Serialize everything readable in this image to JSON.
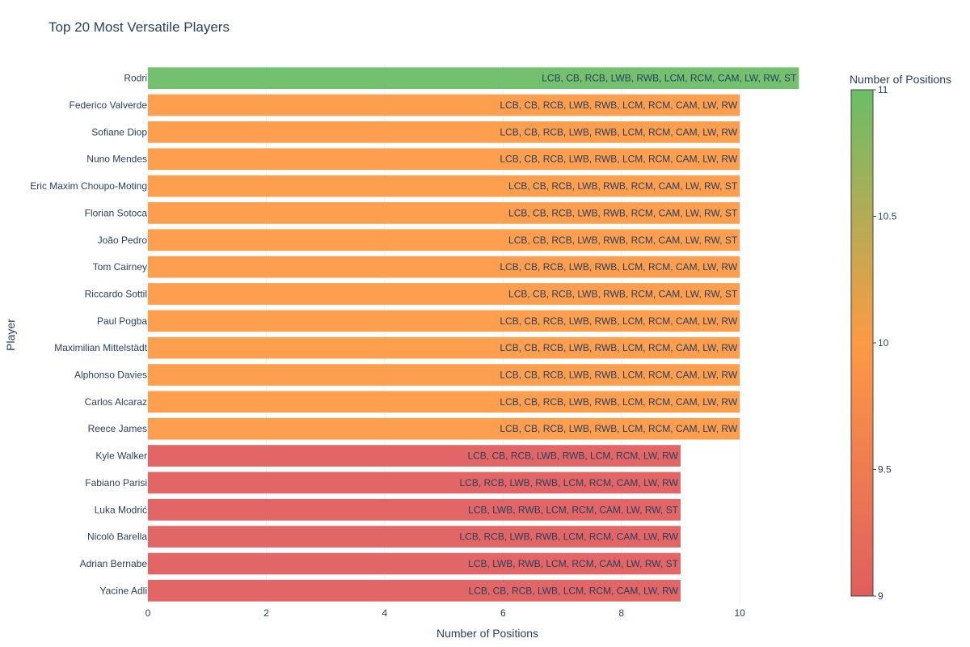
{
  "chart_data": {
    "type": "bar",
    "orientation": "horizontal",
    "title": "Top 20 Most Versatile Players",
    "xlabel": "Number of Positions",
    "ylabel": "Player",
    "xlim": [
      0,
      11.5
    ],
    "x_ticks": [
      0,
      2,
      4,
      6,
      8,
      10
    ],
    "grid": true,
    "categories": [
      "Rodri",
      "Federico Valverde",
      "Sofiane Diop",
      "Nuno Mendes",
      "Eric Maxim Choupo-Moting",
      "Florian Sotoca",
      "João Pedro",
      "Tom Cairney",
      "Riccardo Sottil",
      "Paul Pogba",
      "Maximilian Mittelstädt",
      "Alphonso Davies",
      "Carlos Alcaraz",
      "Reece James",
      "Kyle Walker",
      "Fabiano Parisi",
      "Luka Modrić",
      "Nicolò Barella",
      "Adrian Bernabe",
      "Yacine Adli"
    ],
    "values": [
      11,
      10,
      10,
      10,
      10,
      10,
      10,
      10,
      10,
      10,
      10,
      10,
      10,
      10,
      9,
      9,
      9,
      9,
      9,
      9
    ],
    "bar_text": [
      "LCB, CB, RCB, LWB, RWB, LCM, RCM, CAM, LW, RW, ST",
      "LCB, CB, RCB, LWB, RWB, LCM, RCM, CAM, LW, RW",
      "LCB, CB, RCB, LWB, RWB, LCM, RCM, CAM, LW, RW",
      "LCB, CB, RCB, LWB, RWB, LCM, RCM, CAM, LW, RW",
      "LCB, CB, RCB, LWB, RWB, RCM, CAM, LW, RW, ST",
      "LCB, CB, RCB, LWB, RWB, RCM, CAM, LW, RW, ST",
      "LCB, CB, RCB, LWB, RWB, RCM, CAM, LW, RW, ST",
      "LCB, CB, RCB, LWB, RWB, LCM, RCM, CAM, LW, RW",
      "LCB, CB, RCB, LWB, RWB, RCM, CAM, LW, RW, ST",
      "LCB, CB, RCB, LWB, RWB, LCM, RCM, CAM, LW, RW",
      "LCB, CB, RCB, LWB, RWB, LCM, RCM, CAM, LW, RW",
      "LCB, CB, RCB, LWB, RWB, LCM, RCM, CAM, LW, RW",
      "LCB, CB, RCB, LWB, RWB, LCM, RCM, CAM, LW, RW",
      "LCB, CB, RCB, LWB, RWB, LCM, RCM, CAM, LW, RW",
      "LCB, CB, RCB, LWB, RWB, LCM, RCM, LW, RW",
      "LCB, RCB, LWB, RWB, LCM, RCM, CAM, LW, RW",
      "LCB, LWB, RWB, LCM, RCM, CAM, LW, RW, ST",
      "LCB, RCB, LWB, RWB, LCM, RCM, CAM, LW, RW",
      "LCB, LWB, RWB, LCM, RCM, CAM, LW, RW, ST",
      "LCB, CB, RCB, LWB, LCM, RCM, CAM, LW, RW"
    ],
    "colorscale": {
      "title": "Number of Positions",
      "min": 9,
      "max": 11,
      "ticks": [
        9,
        9.5,
        10,
        10.5,
        11
      ],
      "stops": [
        [
          "#e05e5e",
          0
        ],
        [
          "#fd9a44",
          0.5
        ],
        [
          "#6bbd67",
          1
        ]
      ]
    }
  }
}
